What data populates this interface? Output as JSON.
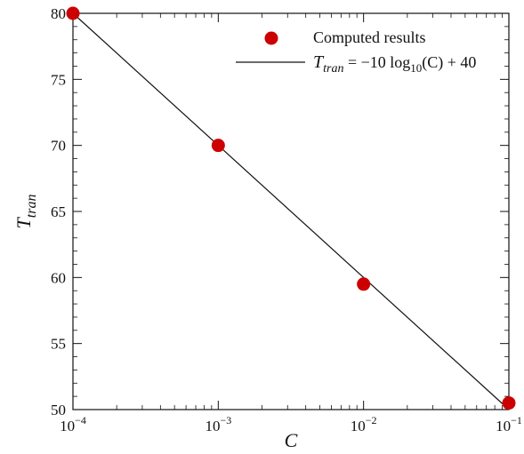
{
  "chart_data": {
    "type": "scatter",
    "x_scale": "log",
    "xlim": [
      0.0001,
      0.1
    ],
    "ylim": [
      50,
      80
    ],
    "xlabel": "C",
    "ylabel": {
      "main": "T",
      "sub": "tran"
    },
    "x_ticks": [
      {
        "value": 0.0001,
        "base": "10",
        "exp": "−4"
      },
      {
        "value": 0.001,
        "base": "10",
        "exp": "−3"
      },
      {
        "value": 0.01,
        "base": "10",
        "exp": "−2"
      },
      {
        "value": 0.1,
        "base": "10",
        "exp": "−1"
      }
    ],
    "y_ticks": [
      50,
      55,
      60,
      65,
      70,
      75,
      80
    ],
    "grid": false,
    "legend_position": "top-right",
    "series": [
      {
        "name": "Computed results",
        "kind": "scatter",
        "color": "#cc0000",
        "points": [
          {
            "x": 0.0001,
            "y": 80.0
          },
          {
            "x": 0.001,
            "y": 70.0
          },
          {
            "x": 0.01,
            "y": 59.5
          },
          {
            "x": 0.1,
            "y": 50.5
          }
        ]
      },
      {
        "kind": "line",
        "color": "#111111",
        "legend_label": {
          "lhs_main": "T",
          "lhs_sub": "tran",
          "rhs_1": " = −10 log",
          "rhs_sub": "10",
          "rhs_2": "(C) + 40"
        },
        "points": [
          {
            "x": 0.0001,
            "y": 80.0
          },
          {
            "x": 0.1,
            "y": 50.0
          }
        ]
      }
    ]
  }
}
